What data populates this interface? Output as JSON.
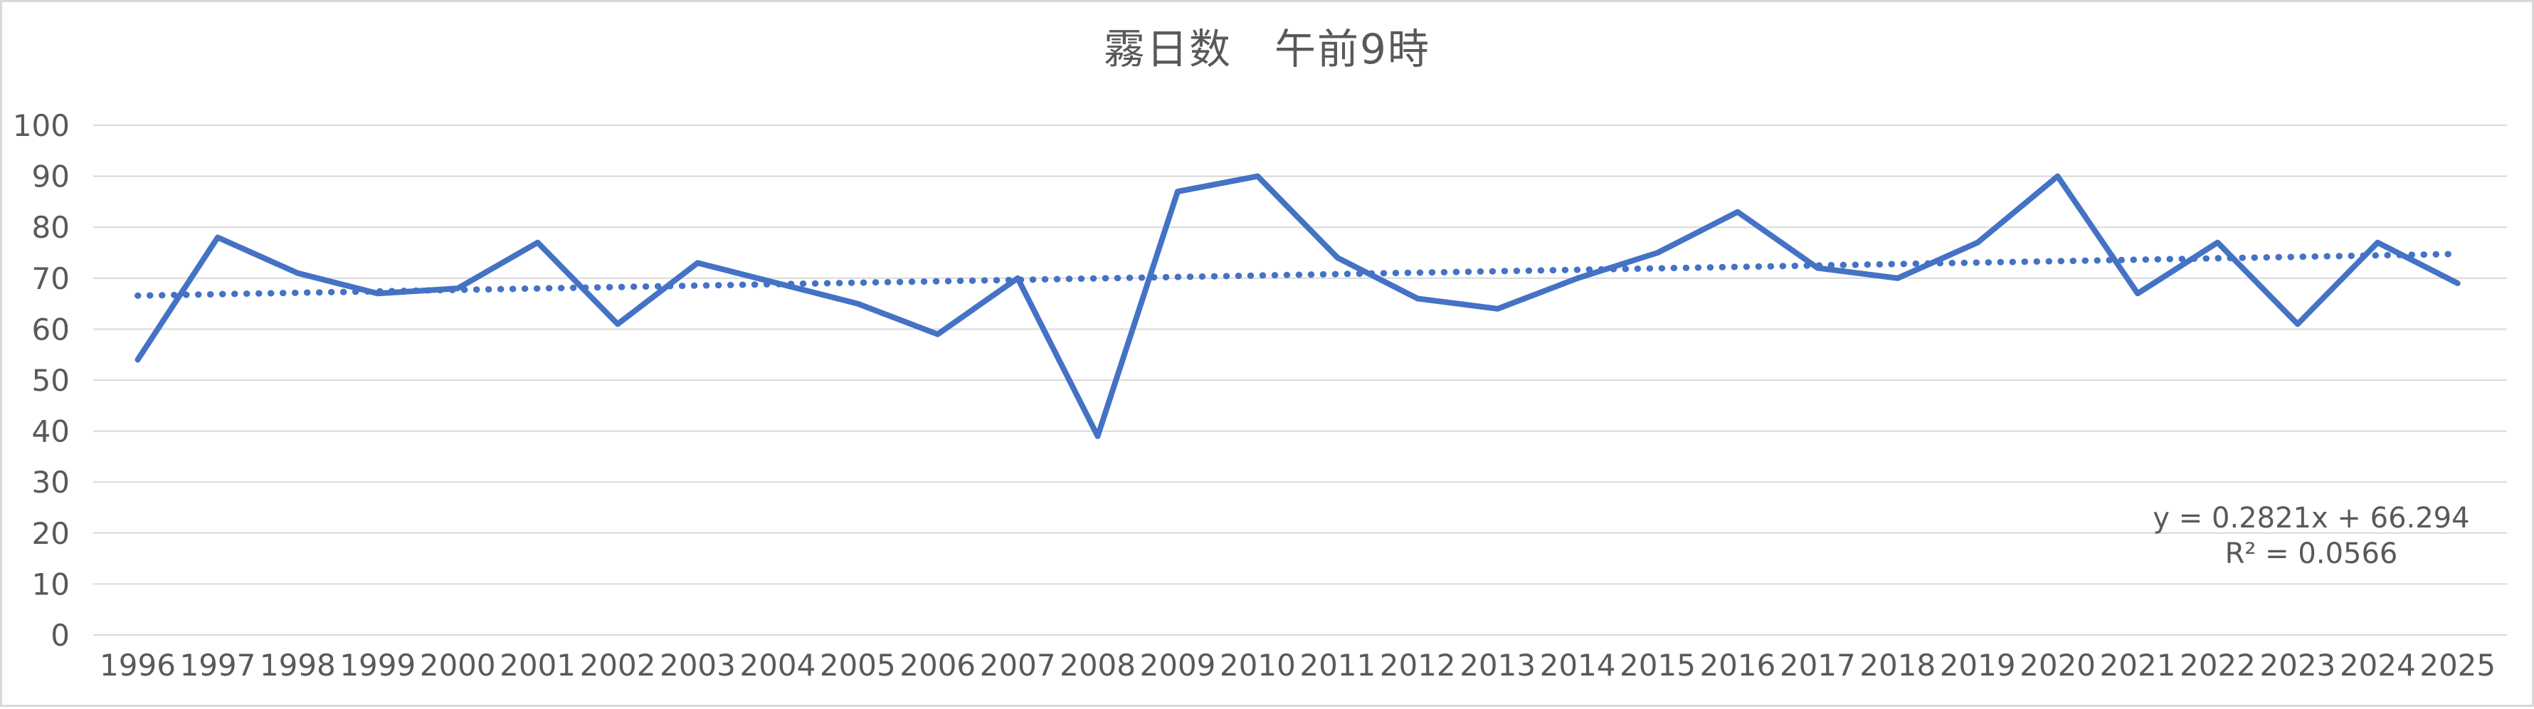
{
  "chart": {
    "title": "霧日数　午前9時",
    "trendline_label": {
      "equation_text": "y = 0.2821x + 66.294",
      "r2_text": "R² = 0.0566"
    },
    "colors": {
      "series": "#4472C4",
      "trendline": "#4472C4",
      "gridline": "#D9D9D9",
      "text": "#595959",
      "background": "#FFFFFF",
      "frame_border": "#D9D9D9"
    }
  },
  "chart_data": {
    "type": "line",
    "title": "霧日数　午前9時",
    "categories": [
      1996,
      1997,
      1998,
      1999,
      2000,
      2001,
      2002,
      2003,
      2004,
      2005,
      2006,
      2007,
      2008,
      2009,
      2010,
      2011,
      2012,
      2013,
      2014,
      2015,
      2016,
      2017,
      2018,
      2019,
      2020,
      2021,
      2022,
      2023,
      2024,
      2025
    ],
    "series": [
      {
        "values": [
          54,
          78,
          71,
          67,
          68,
          77,
          61,
          73,
          69,
          65,
          59,
          70,
          39,
          87,
          90,
          74,
          66,
          64,
          70,
          75,
          83,
          72,
          70,
          77,
          90,
          67,
          77,
          61,
          77,
          69
        ]
      }
    ],
    "trendline": {
      "type": "linear",
      "style": "dotted",
      "slope": 0.2821,
      "intercept": 66.294,
      "r_squared": 0.0566,
      "equation_text": "y = 0.2821x + 66.294",
      "r2_text": "R² = 0.0566"
    },
    "xlabel": "",
    "ylabel": "",
    "ylim": [
      0,
      100
    ],
    "ytick_step": 10,
    "grid": "horizontal",
    "legend": "none"
  }
}
